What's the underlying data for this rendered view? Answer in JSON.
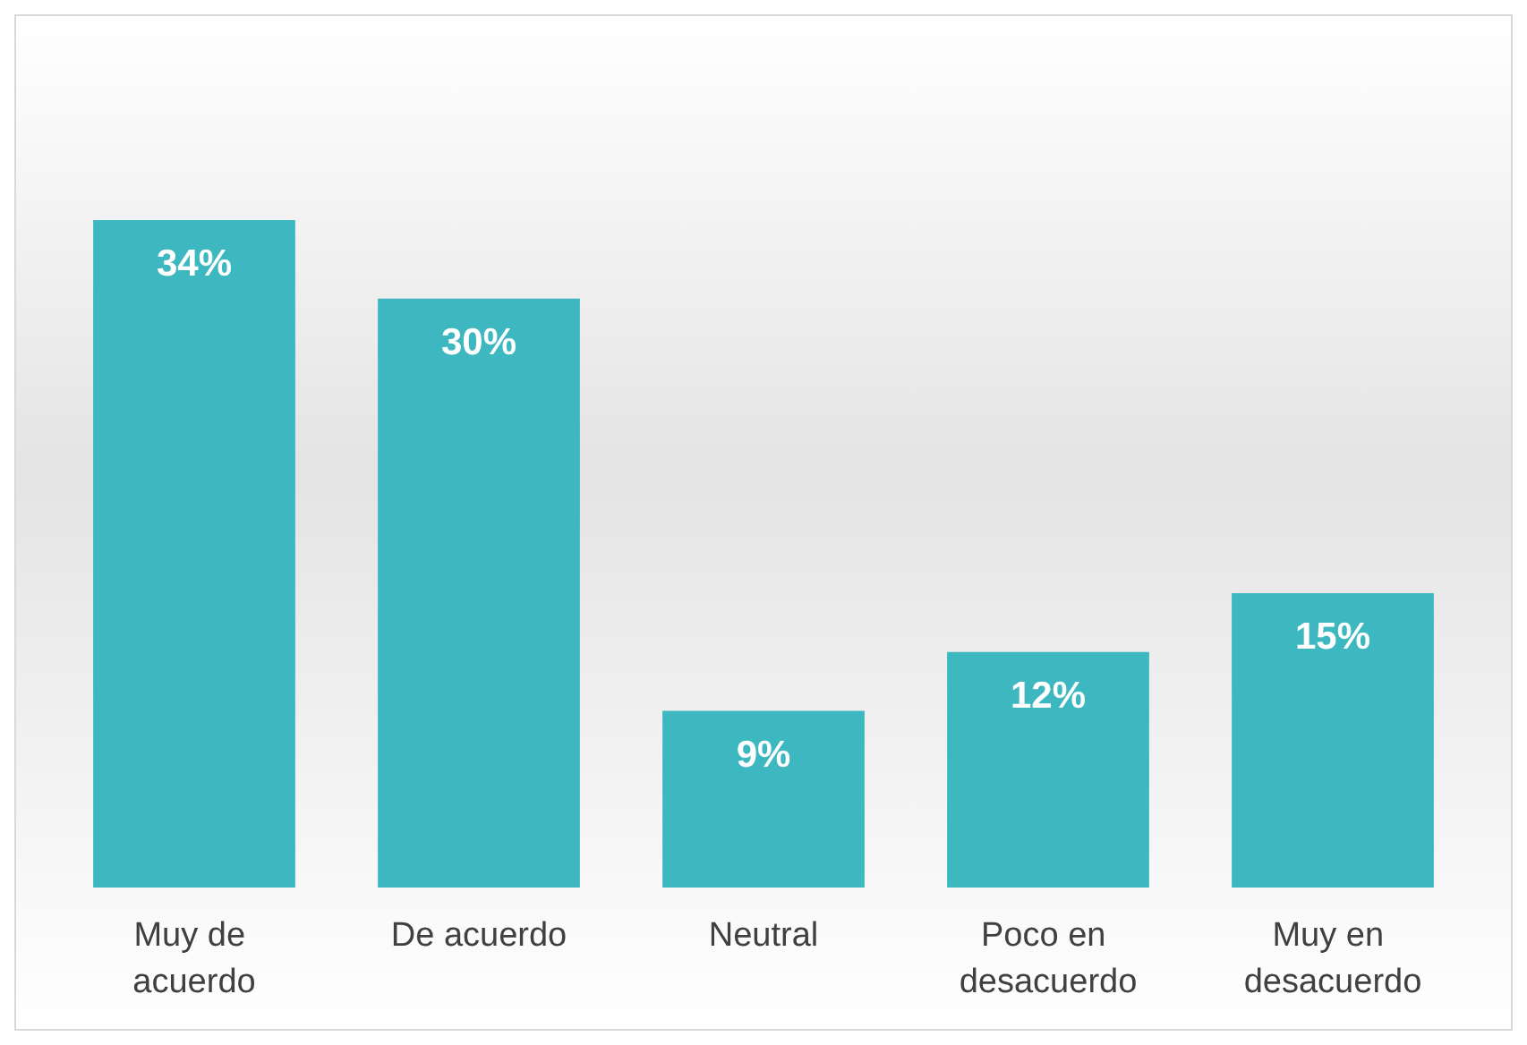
{
  "chart_data": {
    "type": "bar",
    "categories": [
      "Muy de acuerdo",
      "De acuerdo",
      "Neutral",
      "Poco en desacuerdo",
      "Muy en desacuerdo"
    ],
    "values": [
      34,
      30,
      9,
      12,
      15
    ],
    "value_labels": [
      "34%",
      "30%",
      "9%",
      "12%",
      "15%"
    ],
    "color": "#3db7c0"
  }
}
